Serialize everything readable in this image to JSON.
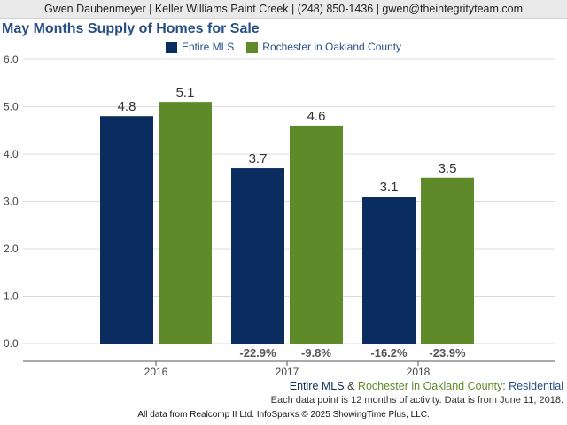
{
  "header": {
    "contact": "Gwen Daubenmeyer | Keller Williams Paint Creek | (248) 850-1436 | gwen@theintegrityteam.com"
  },
  "chart_data": {
    "type": "bar",
    "title": "May Months Supply of Homes for Sale",
    "categories": [
      "2016",
      "2017",
      "2018"
    ],
    "series": [
      {
        "name": "Entire MLS",
        "color": "#0b2c5e",
        "values": [
          4.8,
          3.7,
          3.1
        ],
        "labels": [
          "4.8",
          "3.7",
          "3.1"
        ],
        "changes": [
          "",
          "-22.9%",
          "-16.2%"
        ]
      },
      {
        "name": "Rochester in Oakland County",
        "color": "#5e8a2a",
        "values": [
          5.1,
          4.6,
          3.5
        ],
        "labels": [
          "5.1",
          "4.6",
          "3.5"
        ],
        "changes": [
          "",
          "-9.8%",
          "-23.9%"
        ]
      }
    ],
    "ylim": [
      0,
      6
    ],
    "yticks": [
      "0.0",
      "1.0",
      "2.0",
      "3.0",
      "4.0",
      "5.0",
      "6.0"
    ],
    "grid": true,
    "legend_position": "top-center"
  },
  "footer": {
    "series_a": "Entire MLS",
    "amp": "&",
    "series_b": "Rochester in Oakland County",
    "suffix": ": Residential",
    "note": "Each data point is 12 months of activity. Data is from June 11, 2018.",
    "source": "All data from Realcomp II Ltd. InfoSparks © 2025 ShowingTime Plus, LLC."
  }
}
